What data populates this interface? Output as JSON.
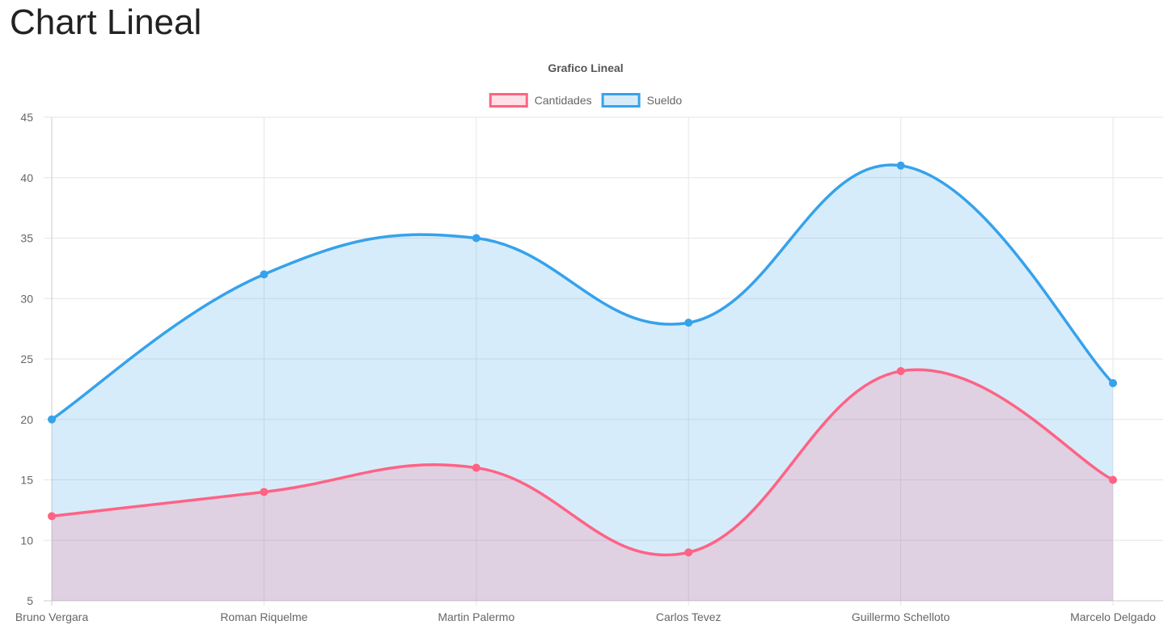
{
  "page": {
    "heading": "Chart Lineal"
  },
  "chart_data": {
    "type": "line",
    "title": "Grafico Lineal",
    "categories": [
      "Bruno Vergara",
      "Roman Riquelme",
      "Martin Palermo",
      "Carlos Tevez",
      "Guillermo Schelloto",
      "Marcelo Delgado"
    ],
    "series": [
      {
        "name": "Cantidades",
        "values": [
          12,
          14,
          16,
          9,
          24,
          15
        ],
        "color": "#ff6384",
        "fill": "rgba(255, 99, 132, 0.2)"
      },
      {
        "name": "Sueldo",
        "values": [
          20,
          32,
          35,
          28,
          41,
          23
        ],
        "color": "#36a2eb",
        "fill": "rgba(54, 162, 235, 0.2)"
      }
    ],
    "ylim": [
      5,
      45
    ],
    "yticks": [
      "5",
      "10",
      "15",
      "20",
      "25",
      "30",
      "35",
      "40",
      "45"
    ],
    "curve": "smooth",
    "filled": true,
    "grid": true,
    "legend_position": "top-center"
  }
}
